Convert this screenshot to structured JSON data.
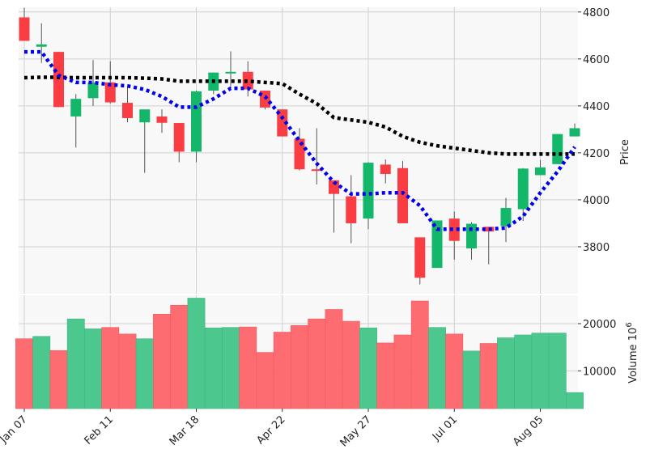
{
  "chart_data": {
    "type": "candlestick",
    "title": "",
    "colors": {
      "up": "#12b76a",
      "down": "#f93d43",
      "up_volume": "#4cc78e",
      "down_volume": "#fd6c70",
      "ma_fast": "#0000ee",
      "ma_slow": "#000000",
      "panel_bg": "#f8f8f8",
      "grid": "#d0d0d0"
    },
    "grid": true,
    "price_panel": {
      "ylabel": "Price",
      "ylim": [
        3600,
        4820
      ],
      "yticks": [
        "3800",
        "4000",
        "4200",
        "4400",
        "4600",
        "4800"
      ],
      "candles": [
        {
          "o": 4777,
          "h": 4818,
          "l": 4677,
          "c": 4677
        },
        {
          "o": 4652,
          "h": 4752,
          "l": 4583,
          "c": 4662
        },
        {
          "o": 4630,
          "h": 4630,
          "l": 4395,
          "c": 4395
        },
        {
          "o": 4355,
          "h": 4450,
          "l": 4223,
          "c": 4430
        },
        {
          "o": 4433,
          "h": 4595,
          "l": 4400,
          "c": 4500
        },
        {
          "o": 4500,
          "h": 4590,
          "l": 4410,
          "c": 4415
        },
        {
          "o": 4413,
          "h": 4485,
          "l": 4330,
          "c": 4348
        },
        {
          "o": 4330,
          "h": 4385,
          "l": 4115,
          "c": 4385
        },
        {
          "o": 4355,
          "h": 4385,
          "l": 4285,
          "c": 4328
        },
        {
          "o": 4327,
          "h": 4327,
          "l": 4160,
          "c": 4205
        },
        {
          "o": 4205,
          "h": 4465,
          "l": 4160,
          "c": 4462
        },
        {
          "o": 4465,
          "h": 4542,
          "l": 4450,
          "c": 4542
        },
        {
          "o": 4540,
          "h": 4632,
          "l": 4485,
          "c": 4545
        },
        {
          "o": 4545,
          "h": 4590,
          "l": 4440,
          "c": 4470
        },
        {
          "o": 4465,
          "h": 4465,
          "l": 4385,
          "c": 4393
        },
        {
          "o": 4385,
          "h": 4385,
          "l": 4270,
          "c": 4270
        },
        {
          "o": 4260,
          "h": 4305,
          "l": 4125,
          "c": 4130
        },
        {
          "o": 4130,
          "h": 4305,
          "l": 4065,
          "c": 4123
        },
        {
          "o": 4083,
          "h": 4083,
          "l": 3860,
          "c": 4025
        },
        {
          "o": 4015,
          "h": 4105,
          "l": 3815,
          "c": 3900
        },
        {
          "o": 3920,
          "h": 4160,
          "l": 3875,
          "c": 4158
        },
        {
          "o": 4150,
          "h": 4172,
          "l": 4070,
          "c": 4110
        },
        {
          "o": 4135,
          "h": 4165,
          "l": 3900,
          "c": 3900
        },
        {
          "o": 3840,
          "h": 3840,
          "l": 3640,
          "c": 3668
        },
        {
          "o": 3710,
          "h": 3912,
          "l": 3710,
          "c": 3912
        },
        {
          "o": 3920,
          "h": 3950,
          "l": 3745,
          "c": 3825
        },
        {
          "o": 3793,
          "h": 3905,
          "l": 3745,
          "c": 3898
        },
        {
          "o": 3885,
          "h": 3885,
          "l": 3725,
          "c": 3865
        },
        {
          "o": 3888,
          "h": 4008,
          "l": 3820,
          "c": 3965
        },
        {
          "o": 3960,
          "h": 4135,
          "l": 3910,
          "c": 4133
        },
        {
          "o": 4105,
          "h": 4170,
          "l": 4105,
          "c": 4138
        },
        {
          "o": 4152,
          "h": 4280,
          "l": 4152,
          "c": 4280
        },
        {
          "o": 4270,
          "h": 4325,
          "l": 4270,
          "c": 4305
        }
      ],
      "ma_fast": [
        4630,
        4630,
        4530,
        4500,
        4500,
        4490,
        4485,
        4470,
        4440,
        4395,
        4395,
        4430,
        4475,
        4475,
        4440,
        4350,
        4250,
        4155,
        4075,
        4025,
        4025,
        4030,
        4030,
        3975,
        3875,
        3875,
        3875,
        3875,
        3880,
        3930,
        4030,
        4120,
        4225
      ],
      "ma_slow": [
        4520,
        4522,
        4522,
        4520,
        4520,
        4520,
        4520,
        4518,
        4515,
        4505,
        4505,
        4505,
        4505,
        4505,
        4500,
        4495,
        4450,
        4410,
        4350,
        4340,
        4330,
        4310,
        4270,
        4245,
        4230,
        4220,
        4210,
        4200,
        4195,
        4195,
        4195,
        4195,
        4195
      ]
    },
    "volume_panel": {
      "ylabel": "Volume  10^6",
      "ylim": [
        2000,
        26000
      ],
      "yticks": [
        "10000",
        "20000"
      ],
      "values": [
        16800,
        17300,
        14300,
        21000,
        18900,
        19200,
        17800,
        16800,
        22000,
        23900,
        25400,
        19100,
        19200,
        19300,
        13900,
        18200,
        19600,
        21000,
        23000,
        20500,
        19100,
        15900,
        17600,
        24800,
        19200,
        17800,
        14200,
        15800,
        17000,
        17600,
        18000,
        18000,
        5400
      ]
    },
    "x_tick_labels": [
      {
        "index": 0,
        "label": "Jan 07"
      },
      {
        "index": 5,
        "label": "Feb 11"
      },
      {
        "index": 10,
        "label": "Mar 18"
      },
      {
        "index": 15,
        "label": "Apr 22"
      },
      {
        "index": 20,
        "label": "May 27"
      },
      {
        "index": 25,
        "label": "Jul 01"
      },
      {
        "index": 30,
        "label": "Aug 05"
      }
    ]
  }
}
